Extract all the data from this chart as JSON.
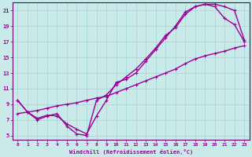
{
  "xlabel": "Windchill (Refroidissement éolien,°C)",
  "background_color": "#caeaea",
  "grid_color": "#a8d8d8",
  "line_color": "#990099",
  "spine_color": "#660066",
  "markersize": 3.5,
  "linewidth": 1.0,
  "xlim": [
    -0.5,
    23.5
  ],
  "ylim": [
    4.5,
    22.0
  ],
  "xticks": [
    0,
    1,
    2,
    3,
    4,
    5,
    6,
    7,
    8,
    9,
    10,
    11,
    12,
    13,
    14,
    15,
    16,
    17,
    18,
    19,
    20,
    21,
    22,
    23
  ],
  "yticks": [
    5,
    7,
    9,
    11,
    13,
    15,
    17,
    19,
    21
  ],
  "curve1_x": [
    0,
    1,
    2,
    3,
    4,
    5,
    6,
    7,
    8,
    9,
    10,
    11,
    12,
    13,
    14,
    15,
    16,
    17,
    18,
    19,
    20,
    21,
    22,
    23
  ],
  "curve1_y": [
    9.5,
    8.0,
    7.0,
    7.5,
    7.8,
    6.2,
    5.2,
    5.0,
    9.5,
    10.2,
    11.5,
    12.5,
    13.5,
    14.8,
    16.2,
    17.8,
    18.8,
    20.5,
    21.5,
    21.8,
    21.8,
    21.5,
    21.0,
    17.2
  ],
  "curve2_x": [
    0,
    1,
    2,
    3,
    4,
    5,
    6,
    7,
    8,
    9,
    10,
    11,
    12,
    13,
    14,
    15,
    16,
    17,
    18,
    19,
    20,
    21,
    22,
    23
  ],
  "curve2_y": [
    9.5,
    8.0,
    7.2,
    7.6,
    7.5,
    6.5,
    5.8,
    5.2,
    7.5,
    9.5,
    11.8,
    12.2,
    13.0,
    14.5,
    16.0,
    17.5,
    19.0,
    20.8,
    21.5,
    21.8,
    21.5,
    20.0,
    19.2,
    17.0
  ],
  "curve3_x": [
    0,
    1,
    2,
    3,
    4,
    5,
    6,
    7,
    8,
    9,
    10,
    11,
    12,
    13,
    14,
    15,
    16,
    17,
    18,
    19,
    20,
    21,
    22,
    23
  ],
  "curve3_y": [
    7.8,
    8.0,
    8.2,
    8.5,
    8.8,
    9.0,
    9.2,
    9.5,
    9.8,
    10.0,
    10.5,
    11.0,
    11.5,
    12.0,
    12.5,
    13.0,
    13.5,
    14.2,
    14.8,
    15.2,
    15.5,
    15.8,
    16.2,
    16.5
  ]
}
